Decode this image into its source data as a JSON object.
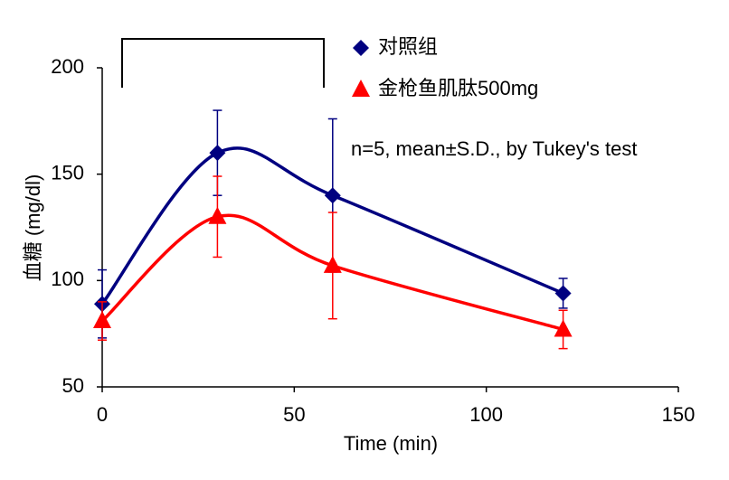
{
  "chart_data": {
    "type": "line",
    "xlabel": "Time (min)",
    "ylabel": "血糖 (mg/dl)",
    "annotation": "n=5, mean±S.D., by Tukey's test",
    "xlim": [
      0,
      150
    ],
    "xticks": [
      0,
      50,
      100,
      150
    ],
    "ylim": [
      50,
      200
    ],
    "yticks": [
      50,
      100,
      150,
      200
    ],
    "series": [
      {
        "name": "对照组",
        "color": "#000080",
        "marker": "diamond",
        "x": [
          0,
          30,
          60,
          120
        ],
        "values": [
          89,
          160,
          140,
          94
        ],
        "errors": [
          16,
          20,
          36,
          7
        ]
      },
      {
        "name": "金枪鱼肌肽500mg",
        "color": "#ff0000",
        "marker": "triangle",
        "x": [
          0,
          30,
          60,
          120
        ],
        "values": [
          81,
          130,
          107,
          77
        ],
        "errors": [
          9,
          19,
          25,
          9
        ]
      }
    ]
  }
}
